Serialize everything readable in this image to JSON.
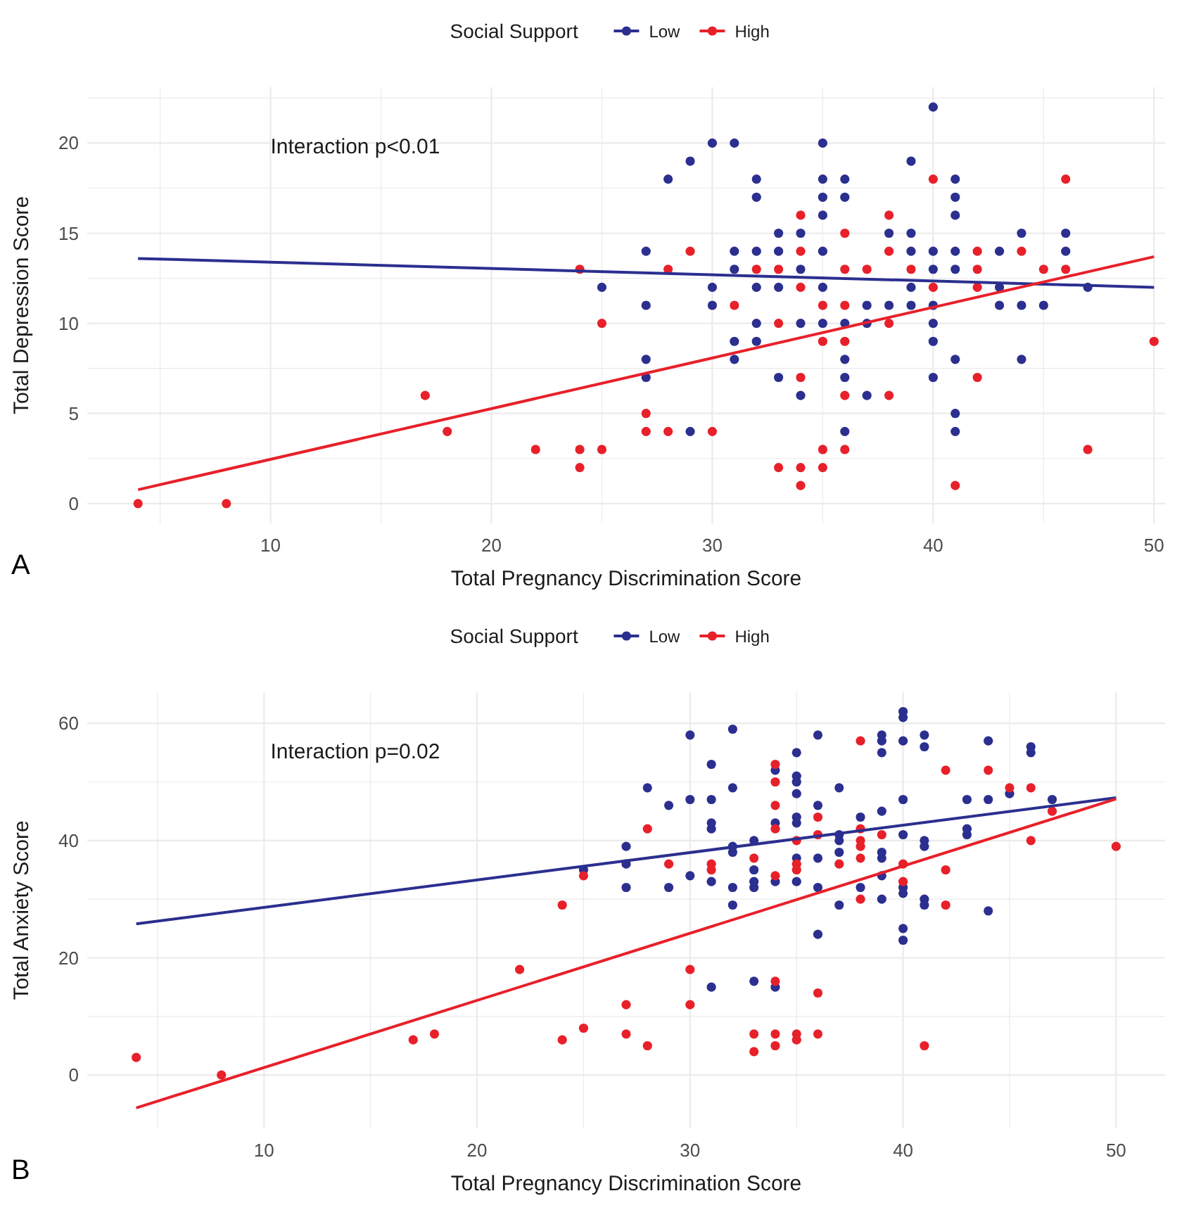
{
  "chart_data": [
    {
      "type": "scatter",
      "xlabel": "Total Pregnancy Discrimination Score",
      "ylabel": "Total Depression Score",
      "legend_title": "Social Support",
      "legend": "top",
      "grid": true,
      "annotations": [
        "Interaction p<0.01",
        "A"
      ],
      "xlim": [
        1.7,
        50.5
      ],
      "ylim": [
        -1.1,
        23.1
      ],
      "xticks": [
        {
          "value": 5,
          "label": null
        },
        10,
        {
          "value": 15,
          "label": null
        },
        20,
        {
          "value": 25,
          "label": null
        },
        30,
        {
          "value": 35,
          "label": null
        },
        40,
        {
          "value": 45,
          "label": null
        },
        50
      ],
      "yticks": [
        0,
        {
          "value": 2.5,
          "label": null
        },
        5,
        {
          "value": 7.5,
          "label": null
        },
        10,
        {
          "value": 12.5,
          "label": null
        },
        15,
        {
          "value": 17.5,
          "label": null
        },
        20,
        {
          "value": 22.5,
          "label": null
        }
      ],
      "series": [
        {
          "name": "Low",
          "color": "#2b2f8f",
          "marker": "circle",
          "x": [
            28,
            29,
            30,
            31,
            32,
            32,
            27,
            31,
            32,
            31,
            25,
            30,
            32,
            27,
            30,
            32,
            31,
            32,
            27,
            31,
            27,
            29,
            33,
            33,
            33,
            33,
            34,
            34,
            34,
            34,
            35,
            35,
            35,
            35,
            35,
            35,
            35,
            36,
            36,
            36,
            36,
            36,
            36,
            37,
            37,
            37,
            38,
            38,
            39,
            39,
            39,
            39,
            39,
            40,
            40,
            40,
            40,
            40,
            40,
            40,
            41,
            41,
            41,
            41,
            41,
            41,
            41,
            41,
            43,
            43,
            43,
            44,
            44,
            44,
            45,
            46,
            46,
            47
          ],
          "values": [
            18,
            19,
            20,
            20,
            18,
            17,
            14,
            14,
            14,
            13,
            12,
            12,
            12,
            11,
            11,
            10,
            9,
            9,
            8,
            8,
            7,
            4,
            15,
            14,
            12,
            7,
            15,
            13,
            10,
            6,
            20,
            18,
            17,
            16,
            14,
            12,
            10,
            18,
            17,
            10,
            8,
            7,
            4,
            11,
            10,
            6,
            15,
            11,
            19,
            15,
            14,
            12,
            11,
            22,
            14,
            13,
            11,
            10,
            9,
            7,
            18,
            17,
            16,
            14,
            13,
            8,
            5,
            4,
            14,
            12,
            11,
            15,
            11,
            8,
            11,
            15,
            14,
            12
          ]
        },
        {
          "name": "High",
          "color": "#e8202a",
          "marker": "circle",
          "x": [
            4,
            8,
            17,
            18,
            22,
            24,
            24,
            24,
            25,
            25,
            27,
            27,
            28,
            28,
            29,
            30,
            31,
            32,
            33,
            33,
            33,
            34,
            34,
            34,
            34,
            34,
            34,
            35,
            35,
            35,
            35,
            36,
            36,
            36,
            36,
            36,
            36,
            37,
            38,
            38,
            38,
            38,
            39,
            40,
            40,
            41,
            42,
            42,
            42,
            42,
            44,
            45,
            46,
            46,
            47,
            50
          ],
          "values": [
            0,
            0,
            6,
            4,
            3,
            13,
            3,
            2,
            10,
            3,
            5,
            4,
            13,
            4,
            14,
            4,
            11,
            13,
            13,
            10,
            2,
            16,
            14,
            12,
            7,
            2,
            1,
            11,
            9,
            3,
            2,
            15,
            13,
            11,
            9,
            6,
            3,
            13,
            16,
            14,
            10,
            6,
            13,
            18,
            12,
            1,
            14,
            13,
            12,
            7,
            14,
            13,
            18,
            13,
            3,
            9
          ]
        },
        {
          "type": "line",
          "color": "#2b2f8f",
          "marker": "none",
          "x": [
            4,
            50
          ],
          "values": [
            13.6,
            12.0
          ]
        },
        {
          "type": "line",
          "color": "#e8202a",
          "marker": "none",
          "x": [
            4,
            50
          ],
          "values": [
            0.77,
            13.7
          ]
        }
      ]
    },
    {
      "type": "scatter",
      "xlabel": "Total Pregnancy Discrimination Score",
      "ylabel": "Total Anxiety Score",
      "legend_title": "Social Support",
      "legend": "top",
      "grid": true,
      "annotations": [
        "Interaction p=0.02",
        "B"
      ],
      "xlim": [
        1.7,
        52.3
      ],
      "ylim": [
        -9.1,
        65.3
      ],
      "xticks": [
        {
          "value": 5,
          "label": null
        },
        10,
        {
          "value": 15,
          "label": null
        },
        20,
        {
          "value": 25,
          "label": null
        },
        30,
        {
          "value": 35,
          "label": null
        },
        40,
        {
          "value": 45,
          "label": null
        },
        50
      ],
      "yticks": [
        0,
        {
          "value": 10,
          "label": null
        },
        20,
        {
          "value": 30,
          "label": null
        },
        40,
        {
          "value": 50,
          "label": null
        },
        60
      ],
      "series": [
        {
          "name": "Low",
          "color": "#2b2f8f",
          "marker": "circle",
          "x": [
            25,
            27,
            27,
            27,
            28,
            29,
            29,
            30,
            30,
            30,
            31,
            31,
            31,
            31,
            31,
            31,
            32,
            32,
            32,
            32,
            32,
            32,
            33,
            33,
            33,
            33,
            33,
            34,
            34,
            34,
            34,
            35,
            35,
            35,
            35,
            35,
            35,
            35,
            35,
            36,
            36,
            36,
            36,
            36,
            37,
            37,
            37,
            37,
            37,
            38,
            38,
            39,
            39,
            39,
            39,
            39,
            39,
            39,
            39,
            40,
            40,
            40,
            40,
            40,
            40,
            40,
            40,
            40,
            41,
            41,
            41,
            41,
            41,
            41,
            43,
            43,
            43,
            44,
            44,
            44,
            45,
            46,
            46,
            47
          ],
          "values": [
            35,
            39,
            36,
            32,
            49,
            46,
            32,
            58,
            47,
            34,
            53,
            47,
            43,
            42,
            33,
            15,
            59,
            49,
            39,
            38,
            32,
            29,
            40,
            35,
            33,
            32,
            16,
            52,
            43,
            33,
            15,
            55,
            51,
            50,
            48,
            44,
            43,
            37,
            33,
            58,
            46,
            37,
            32,
            24,
            49,
            41,
            40,
            38,
            29,
            44,
            32,
            58,
            57,
            55,
            45,
            38,
            37,
            34,
            30,
            62,
            61,
            57,
            47,
            41,
            32,
            31,
            25,
            23,
            58,
            56,
            40,
            39,
            30,
            29,
            47,
            42,
            41,
            57,
            47,
            28,
            48,
            56,
            55,
            47
          ]
        },
        {
          "name": "High",
          "color": "#e8202a",
          "marker": "circle",
          "x": [
            4,
            8,
            17,
            18,
            22,
            24,
            24,
            25,
            25,
            27,
            27,
            28,
            28,
            29,
            30,
            30,
            31,
            31,
            33,
            33,
            33,
            34,
            34,
            34,
            34,
            34,
            34,
            34,
            34,
            35,
            35,
            35,
            35,
            35,
            36,
            36,
            36,
            36,
            37,
            38,
            38,
            38,
            38,
            38,
            38,
            39,
            40,
            40,
            41,
            42,
            42,
            42,
            44,
            45,
            46,
            46,
            47,
            50
          ],
          "values": [
            3,
            0,
            6,
            7,
            18,
            29,
            6,
            34,
            8,
            12,
            7,
            42,
            5,
            36,
            18,
            12,
            36,
            35,
            37,
            7,
            4,
            53,
            50,
            46,
            42,
            34,
            16,
            7,
            5,
            40,
            36,
            35,
            7,
            6,
            44,
            41,
            14,
            7,
            36,
            57,
            42,
            40,
            39,
            37,
            30,
            41,
            36,
            33,
            5,
            52,
            35,
            29,
            52,
            49,
            49,
            40,
            45,
            39
          ]
        },
        {
          "type": "line",
          "color": "#2b2f8f",
          "marker": "none",
          "x": [
            4,
            50
          ],
          "values": [
            25.8,
            47.3
          ]
        },
        {
          "type": "line",
          "color": "#e8202a",
          "marker": "none",
          "x": [
            4,
            50
          ],
          "values": [
            -5.6,
            47.1
          ]
        }
      ]
    }
  ]
}
